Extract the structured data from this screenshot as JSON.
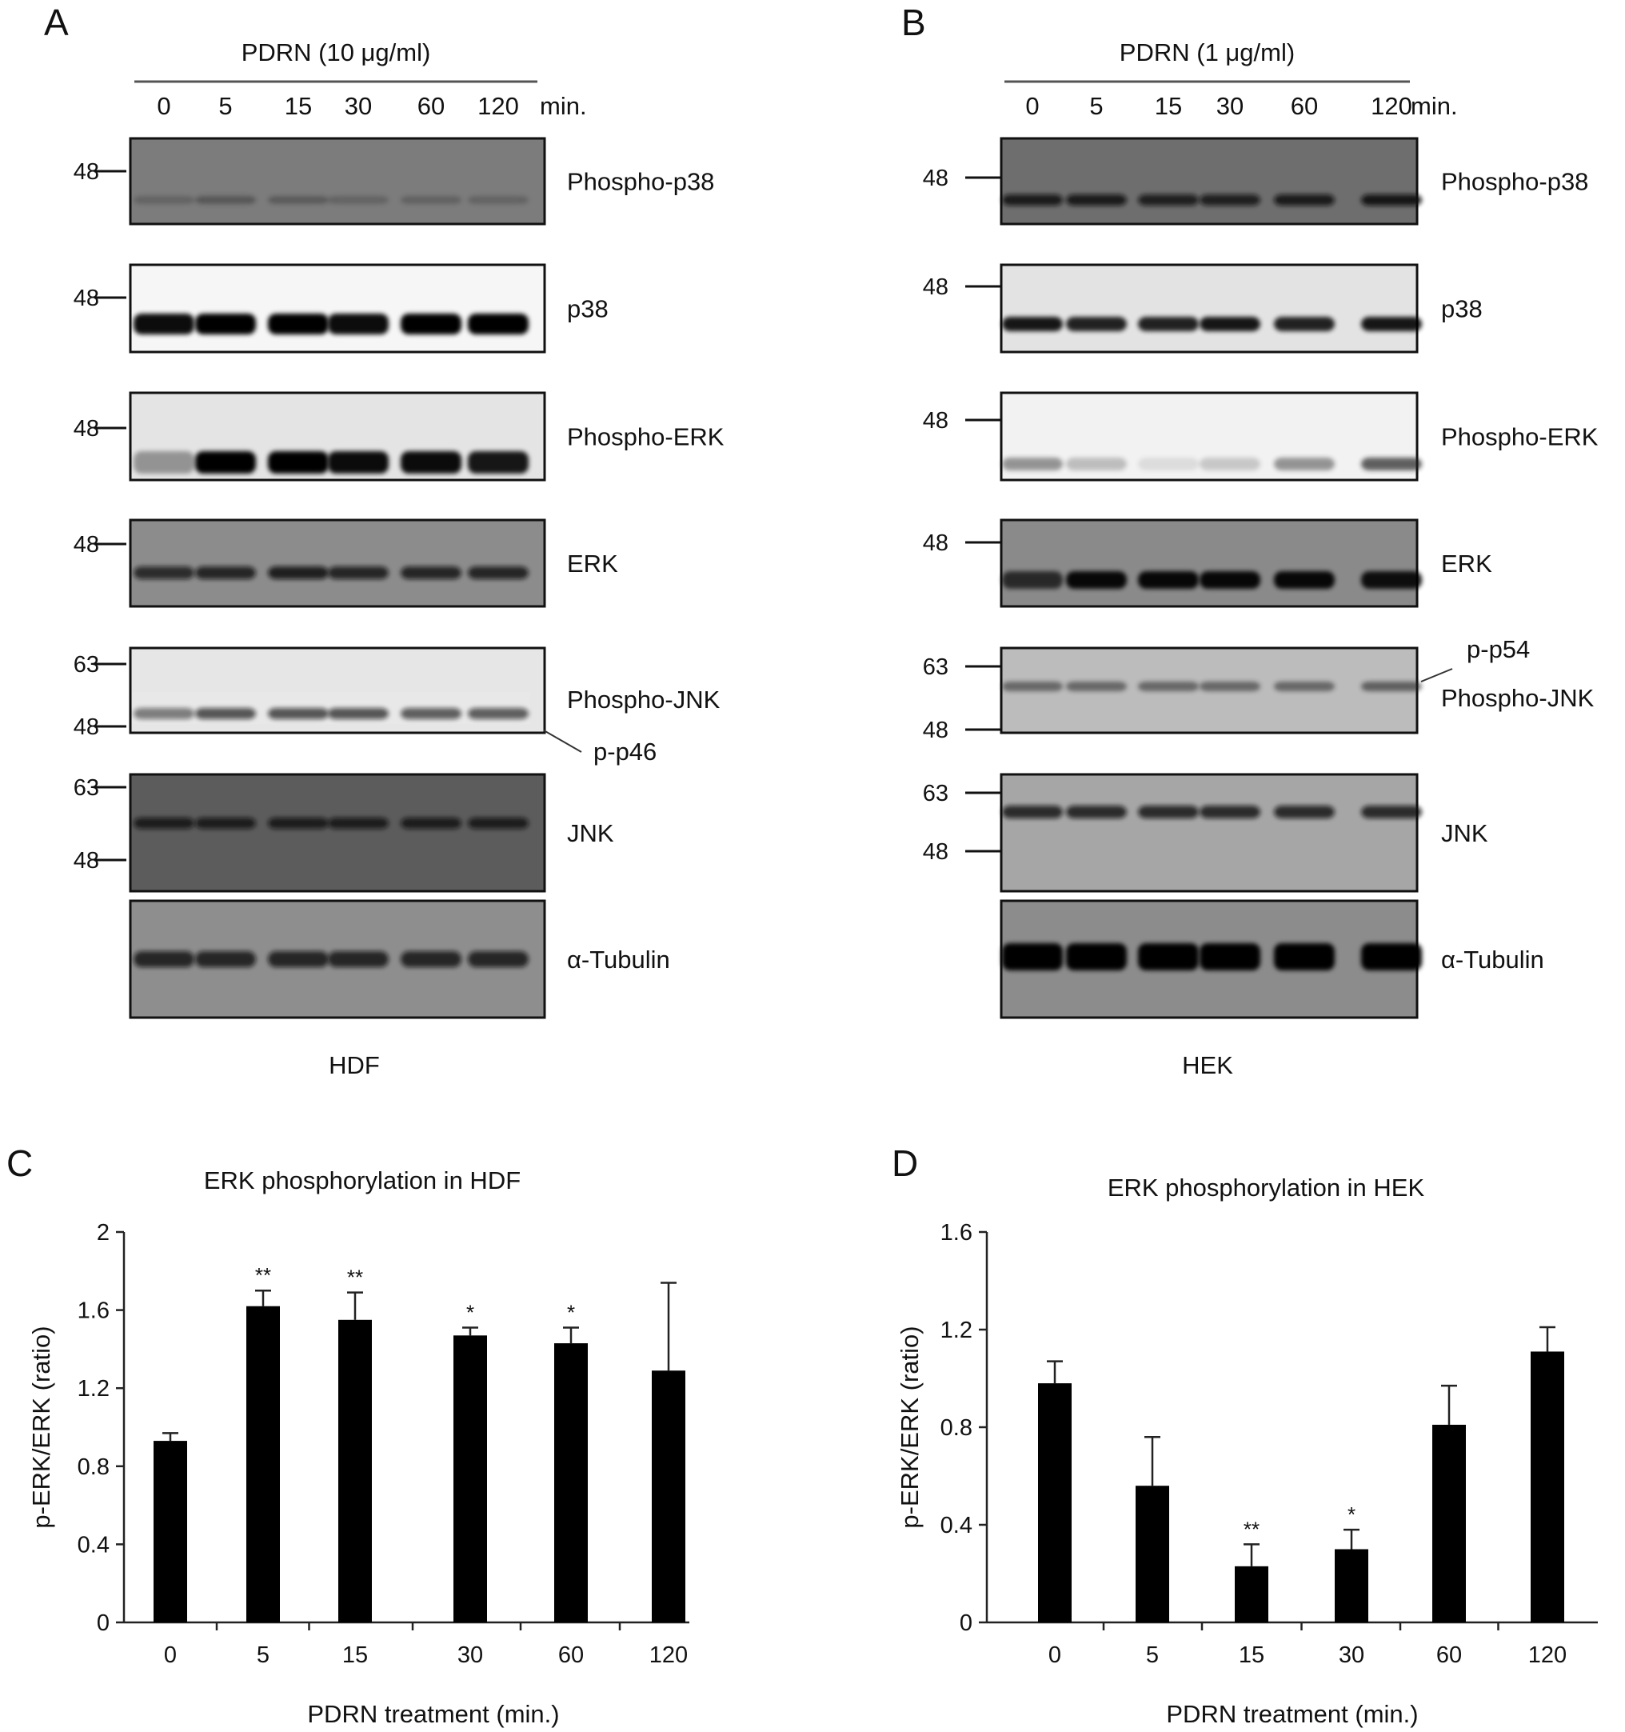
{
  "panels": {
    "A": {
      "label": "A",
      "treatment": "PDRN (10 μg/ml)",
      "time_labels": [
        "0",
        "5",
        "15",
        "30",
        "60",
        "120"
      ],
      "time_unit": "min.",
      "cell": "HDF",
      "blots": [
        {
          "name": "Phospho-p38",
          "markers": [
            "48"
          ]
        },
        {
          "name": "p38",
          "markers": [
            "48"
          ]
        },
        {
          "name": "Phospho-ERK",
          "markers": [
            "48"
          ]
        },
        {
          "name": "ERK",
          "markers": [
            "48"
          ]
        },
        {
          "name": "Phospho-JNK",
          "markers": [
            "63",
            "48"
          ],
          "annotation": "p-p46"
        },
        {
          "name": "JNK",
          "markers": [
            "63",
            "48"
          ]
        },
        {
          "name": "α-Tubulin",
          "markers": []
        }
      ]
    },
    "B": {
      "label": "B",
      "treatment": "PDRN (1 μg/ml)",
      "time_labels": [
        "0",
        "5",
        "15",
        "30",
        "60",
        "120"
      ],
      "time_unit": "min.",
      "cell": "HEK",
      "blots": [
        {
          "name": "Phospho-p38",
          "markers": [
            "48"
          ]
        },
        {
          "name": "p38",
          "markers": [
            "48"
          ]
        },
        {
          "name": "Phospho-ERK",
          "markers": [
            "48"
          ]
        },
        {
          "name": "ERK",
          "markers": [
            "48"
          ]
        },
        {
          "name": "Phospho-JNK",
          "markers": [
            "63",
            "48"
          ],
          "annotation": "p-p54"
        },
        {
          "name": "JNK",
          "markers": [
            "63",
            "48"
          ]
        },
        {
          "name": "α-Tubulin",
          "markers": []
        }
      ]
    },
    "C": {
      "label": "C"
    },
    "D": {
      "label": "D"
    }
  },
  "chart_data": [
    {
      "type": "bar",
      "title": "ERK phosphorylation in HDF",
      "xlabel": "PDRN treatment (min.)",
      "ylabel": "p-ERK/ERK (ratio)",
      "categories": [
        "0",
        "5",
        "15",
        "30",
        "60",
        "120"
      ],
      "values": [
        0.93,
        1.62,
        1.55,
        1.47,
        1.43,
        1.29
      ],
      "errors": [
        0.04,
        0.08,
        0.14,
        0.04,
        0.08,
        0.45
      ],
      "significance": [
        "",
        "**",
        "**",
        "*",
        "*",
        ""
      ],
      "ylim": [
        0,
        2
      ],
      "yticks": [
        "0",
        "0.4",
        "0.8",
        "1.2",
        "1.6",
        "2"
      ],
      "bar_color": "#000000"
    },
    {
      "type": "bar",
      "title": "ERK phosphorylation in HEK",
      "xlabel": "PDRN treatment (min.)",
      "ylabel": "p-ERK/ERK (ratio)",
      "categories": [
        "0",
        "5",
        "15",
        "30",
        "60",
        "120"
      ],
      "values": [
        0.98,
        0.56,
        0.23,
        0.3,
        0.81,
        1.11
      ],
      "errors": [
        0.09,
        0.2,
        0.09,
        0.08,
        0.16,
        0.1
      ],
      "significance": [
        "",
        "",
        "**",
        "*",
        "",
        ""
      ],
      "ylim": [
        0,
        1.6
      ],
      "yticks": [
        "0",
        "0.4",
        "0.8",
        "1.2",
        "1.6"
      ],
      "bar_color": "#000000"
    }
  ]
}
